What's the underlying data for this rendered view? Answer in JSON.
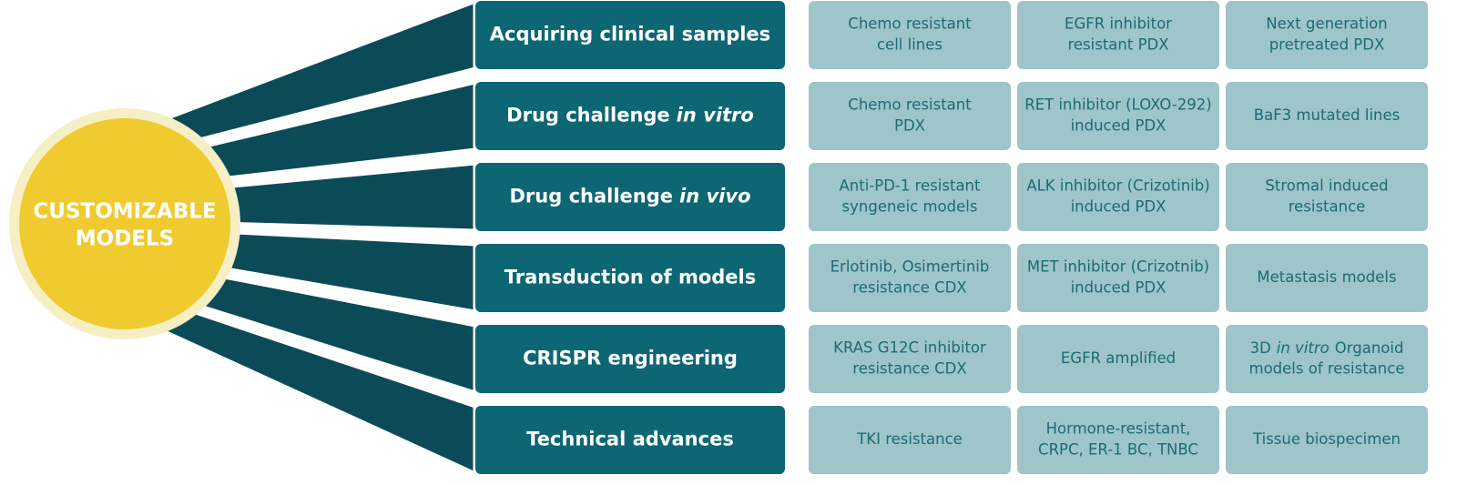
{
  "center": {
    "lines": [
      "CUSTOMIZABLE",
      "MODELS"
    ]
  },
  "rows": [
    {
      "label": [
        {
          "text": "Acquiring clinical samples"
        }
      ],
      "cells": [
        [
          "Chemo resistant",
          "cell lines"
        ],
        [
          "EGFR inhibitor",
          "resistant PDX"
        ],
        [
          "Next generation",
          "pretreated PDX"
        ]
      ]
    },
    {
      "label": [
        {
          "text": "Drug challenge"
        },
        {
          "text": "in vitro",
          "italic": true
        }
      ],
      "cells": [
        [
          "Chemo resistant",
          "PDX"
        ],
        [
          "RET inhibitor (LOXO-292)",
          "induced PDX"
        ],
        [
          "BaF3 mutated lines"
        ]
      ]
    },
    {
      "label": [
        {
          "text": "Drug challenge"
        },
        {
          "text": "in vivo",
          "italic": true
        }
      ],
      "cells": [
        [
          "Anti-PD-1 resistant",
          "syngeneic models"
        ],
        [
          "ALK inhibitor (Crizotinib)",
          "induced PDX"
        ],
        [
          "Stromal induced",
          "resistance"
        ]
      ]
    },
    {
      "label": [
        {
          "text": "Transduction of models"
        }
      ],
      "cells": [
        [
          "Erlotinib, Osimertinib",
          "resistance CDX"
        ],
        [
          "MET inhibitor (Crizotnib)",
          "induced PDX"
        ],
        [
          "Metastasis models"
        ]
      ]
    },
    {
      "label": [
        {
          "text": "CRISPR engineering"
        }
      ],
      "cells": [
        [
          "KRAS G12C inhibitor",
          "resistance CDX"
        ],
        [
          "EGFR amplified"
        ],
        [
          [
            {
              "text": "3D"
            },
            {
              "text": "in vitro",
              "italic": true
            },
            {
              "text": "Organoid"
            }
          ],
          "models of resistance"
        ]
      ]
    },
    {
      "label": [
        {
          "text": "Technical advances"
        }
      ],
      "cells": [
        [
          "TKI resistance"
        ],
        [
          "Hormone-resistant,",
          "CRPC, ER-1 BC, TNBC"
        ],
        [
          "Tissue biospecimen"
        ]
      ]
    }
  ]
}
